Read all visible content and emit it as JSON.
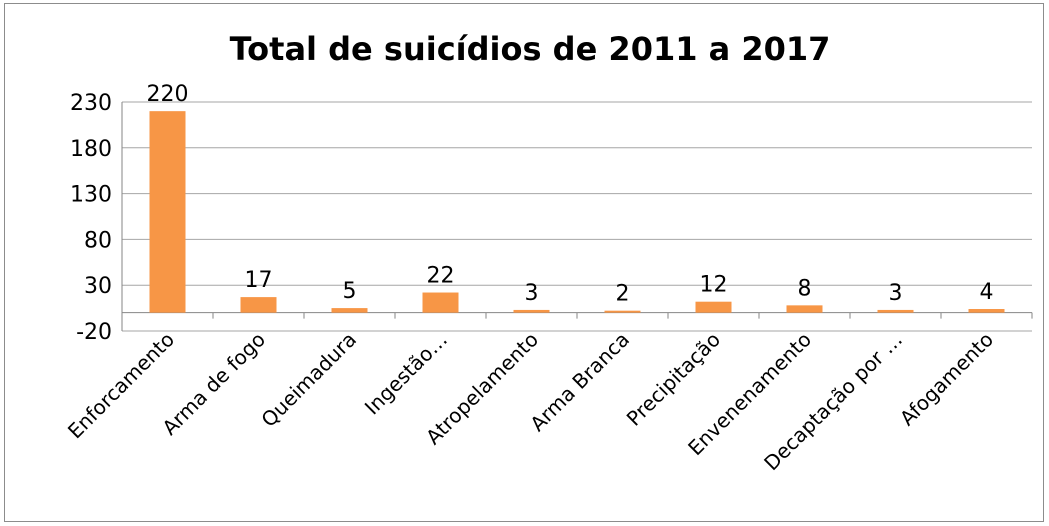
{
  "chart_data": {
    "type": "bar",
    "title": "Total  de suicídios de 2011 a 2017",
    "categories": [
      "Enforcamento",
      "Arma de fogo",
      "Queimadura",
      "Ingestão…",
      "Atropelamento",
      "Arma Branca",
      "Precipitação",
      "Envenenamento",
      "Decaptação por …",
      "Afogamento"
    ],
    "values": [
      220,
      17,
      5,
      22,
      3,
      2,
      12,
      8,
      3,
      4
    ],
    "yticks": [
      -20,
      30,
      80,
      130,
      180,
      230
    ],
    "ylim": [
      -20,
      230
    ],
    "bar_color": "#f79646",
    "grid": true,
    "legend": "none"
  }
}
